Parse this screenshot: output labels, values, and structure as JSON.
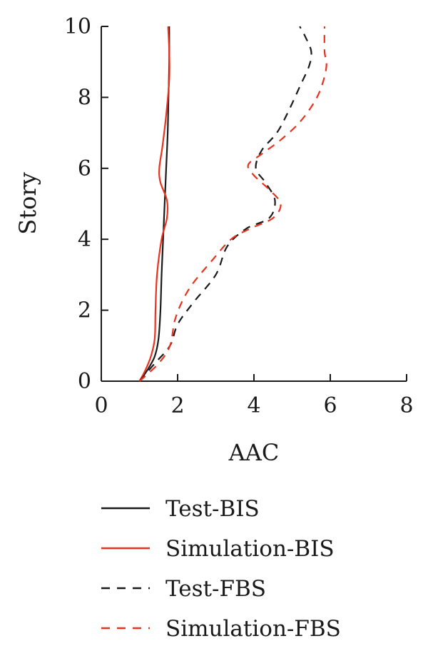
{
  "chart_data": {
    "type": "line",
    "xlabel": "AAC",
    "ylabel": "Story",
    "xlim": [
      0,
      8
    ],
    "ylim": [
      0,
      10
    ],
    "xticks": [
      0,
      2,
      4,
      6,
      8
    ],
    "yticks": [
      0,
      2,
      4,
      6,
      8,
      10
    ],
    "grid": false,
    "legend_position": "bottom",
    "series": [
      {
        "name": "Test-BIS",
        "color": "#1a1a1a",
        "dash": "solid",
        "points": [
          [
            1.0,
            0.0
          ],
          [
            1.2,
            0.3
          ],
          [
            1.4,
            0.7
          ],
          [
            1.5,
            1.2
          ],
          [
            1.55,
            2.0
          ],
          [
            1.58,
            3.0
          ],
          [
            1.62,
            4.0
          ],
          [
            1.66,
            5.0
          ],
          [
            1.7,
            6.0
          ],
          [
            1.74,
            7.0
          ],
          [
            1.76,
            8.0
          ],
          [
            1.78,
            9.0
          ],
          [
            1.78,
            10.0
          ]
        ]
      },
      {
        "name": "Simulation-BIS",
        "color": "#e8321e",
        "dash": "solid",
        "points": [
          [
            1.0,
            0.0
          ],
          [
            1.15,
            0.3
          ],
          [
            1.3,
            0.7
          ],
          [
            1.4,
            1.2
          ],
          [
            1.42,
            2.0
          ],
          [
            1.46,
            3.0
          ],
          [
            1.58,
            4.0
          ],
          [
            1.72,
            4.6
          ],
          [
            1.72,
            5.1
          ],
          [
            1.55,
            5.6
          ],
          [
            1.52,
            6.0
          ],
          [
            1.6,
            6.6
          ],
          [
            1.7,
            7.5
          ],
          [
            1.78,
            8.5
          ],
          [
            1.78,
            9.3
          ],
          [
            1.75,
            10.0
          ]
        ]
      },
      {
        "name": "Test-FBS",
        "color": "#1a1a1a",
        "dash": "dashed",
        "points": [
          [
            1.0,
            0.0
          ],
          [
            1.4,
            0.5
          ],
          [
            1.8,
            1.0
          ],
          [
            2.0,
            1.6
          ],
          [
            2.4,
            2.2
          ],
          [
            3.0,
            3.0
          ],
          [
            3.3,
            3.8
          ],
          [
            3.8,
            4.3
          ],
          [
            4.4,
            4.6
          ],
          [
            4.55,
            5.1
          ],
          [
            4.3,
            5.6
          ],
          [
            4.05,
            6.0
          ],
          [
            4.2,
            6.5
          ],
          [
            4.6,
            7.0
          ],
          [
            4.9,
            7.6
          ],
          [
            5.2,
            8.3
          ],
          [
            5.45,
            8.9
          ],
          [
            5.5,
            9.3
          ],
          [
            5.35,
            9.7
          ],
          [
            5.2,
            10.0
          ]
        ]
      },
      {
        "name": "Simulation-FBS",
        "color": "#e8321e",
        "dash": "dashed",
        "points": [
          [
            1.0,
            0.0
          ],
          [
            1.5,
            0.5
          ],
          [
            1.8,
            1.0
          ],
          [
            1.95,
            1.8
          ],
          [
            2.3,
            2.6
          ],
          [
            2.9,
            3.4
          ],
          [
            3.4,
            4.0
          ],
          [
            3.9,
            4.3
          ],
          [
            4.5,
            4.6
          ],
          [
            4.7,
            5.0
          ],
          [
            4.4,
            5.4
          ],
          [
            4.0,
            5.8
          ],
          [
            3.85,
            6.1
          ],
          [
            4.2,
            6.4
          ],
          [
            4.7,
            6.8
          ],
          [
            5.2,
            7.3
          ],
          [
            5.6,
            7.9
          ],
          [
            5.8,
            8.4
          ],
          [
            5.9,
            8.9
          ],
          [
            5.85,
            9.3
          ],
          [
            5.85,
            10.0
          ]
        ]
      }
    ]
  }
}
